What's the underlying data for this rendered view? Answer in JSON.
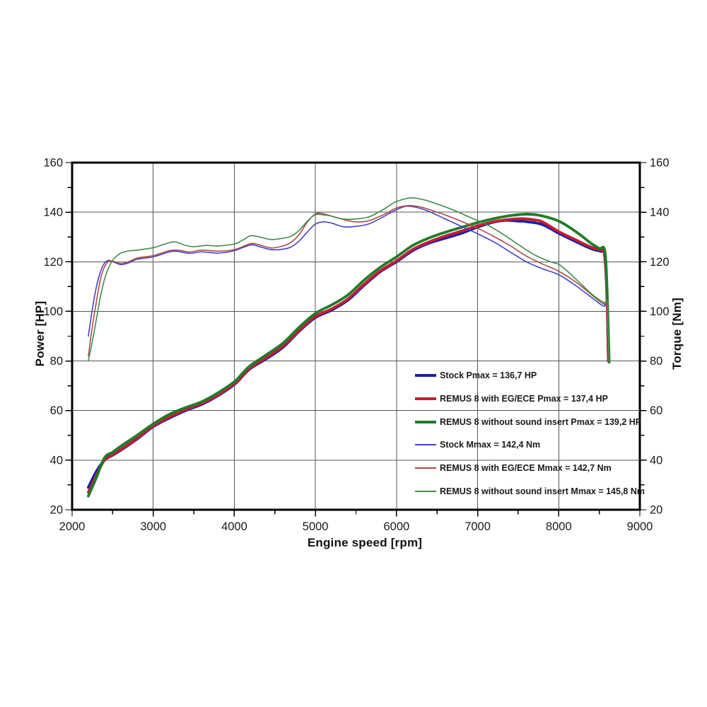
{
  "chart_data": {
    "type": "line",
    "title": "",
    "xlabel": "Engine speed [rpm]",
    "ylabel_left": "Power [HP]",
    "ylabel_right": "Torque [Nm]",
    "x_range": [
      2000,
      9000
    ],
    "y_range": [
      20,
      160
    ],
    "x_ticks": [
      2000,
      3000,
      4000,
      5000,
      6000,
      7000,
      8000,
      9000
    ],
    "y_ticks": [
      20,
      40,
      60,
      80,
      100,
      120,
      140,
      160
    ],
    "x_minor_step": 500,
    "y_minor_step": 10,
    "grid": true,
    "legend_position": "inside-lower-right",
    "colors": {
      "background": "#ffffff",
      "border": "#000000",
      "grid": "#555555",
      "text": "#1a1a1a"
    },
    "series": [
      {
        "id": "power-stock",
        "name": "Stock Pmax = 136,7 HP",
        "axis": "power",
        "color": "#1c1cae",
        "width": 3.8,
        "points": [
          [
            2200,
            29
          ],
          [
            2300,
            35.5
          ],
          [
            2400,
            40
          ],
          [
            2500,
            42
          ],
          [
            2600,
            44
          ],
          [
            2800,
            48.5
          ],
          [
            3000,
            53.5
          ],
          [
            3200,
            57
          ],
          [
            3400,
            60
          ],
          [
            3600,
            62.5
          ],
          [
            3800,
            66
          ],
          [
            4000,
            70.5
          ],
          [
            4100,
            73.8
          ],
          [
            4200,
            77
          ],
          [
            4400,
            81
          ],
          [
            4600,
            85.5
          ],
          [
            4800,
            92
          ],
          [
            5000,
            97.5
          ],
          [
            5200,
            100.5
          ],
          [
            5400,
            104.5
          ],
          [
            5600,
            110.5
          ],
          [
            5800,
            116
          ],
          [
            6000,
            120
          ],
          [
            6200,
            124.5
          ],
          [
            6400,
            127.5
          ],
          [
            6600,
            129.5
          ],
          [
            6800,
            131.5
          ],
          [
            7000,
            134
          ],
          [
            7200,
            136
          ],
          [
            7350,
            136.7
          ],
          [
            7500,
            136.4
          ],
          [
            7600,
            136.2
          ],
          [
            7800,
            135
          ],
          [
            8000,
            131.5
          ],
          [
            8200,
            128.3
          ],
          [
            8400,
            125.3
          ],
          [
            8520,
            124.2
          ],
          [
            8560,
            123.6
          ],
          [
            8590,
            110
          ],
          [
            8612,
            80
          ]
        ]
      },
      {
        "id": "power-remus-egece",
        "name": "REMUS 8 with EG/ECE Pmax = 137,4 HP",
        "axis": "power",
        "color": "#c41e2e",
        "width": 3.8,
        "points": [
          [
            2200,
            27
          ],
          [
            2300,
            34
          ],
          [
            2400,
            40
          ],
          [
            2500,
            42.2
          ],
          [
            2600,
            44.3
          ],
          [
            2800,
            48.8
          ],
          [
            3000,
            53.8
          ],
          [
            3200,
            57.4
          ],
          [
            3400,
            60.4
          ],
          [
            3600,
            62.9
          ],
          [
            3800,
            66.3
          ],
          [
            4000,
            70.8
          ],
          [
            4100,
            74
          ],
          [
            4200,
            77.3
          ],
          [
            4400,
            81.5
          ],
          [
            4600,
            86
          ],
          [
            4800,
            92.4
          ],
          [
            5000,
            98
          ],
          [
            5200,
            101
          ],
          [
            5400,
            105
          ],
          [
            5600,
            111
          ],
          [
            5800,
            116.4
          ],
          [
            6000,
            120.4
          ],
          [
            6200,
            125
          ],
          [
            6400,
            128
          ],
          [
            6600,
            130.4
          ],
          [
            6800,
            132.4
          ],
          [
            7000,
            134.5
          ],
          [
            7200,
            136.2
          ],
          [
            7400,
            137.1
          ],
          [
            7550,
            137.4
          ],
          [
            7700,
            136.9
          ],
          [
            7800,
            136.1
          ],
          [
            8000,
            132.2
          ],
          [
            8200,
            129
          ],
          [
            8400,
            125.9
          ],
          [
            8520,
            124.7
          ],
          [
            8560,
            124
          ],
          [
            8590,
            111
          ],
          [
            8612,
            80.5
          ]
        ]
      },
      {
        "id": "power-remus-no-insert",
        "name": "REMUS 8 without sound insert Pmax = 139,2 HP",
        "axis": "power",
        "color": "#1e7d28",
        "width": 3.8,
        "points": [
          [
            2200,
            25.5
          ],
          [
            2300,
            33
          ],
          [
            2400,
            41
          ],
          [
            2500,
            43.2
          ],
          [
            2600,
            45.6
          ],
          [
            2800,
            50
          ],
          [
            3000,
            54.6
          ],
          [
            3200,
            58.5
          ],
          [
            3400,
            61.2
          ],
          [
            3600,
            63.6
          ],
          [
            3800,
            67.2
          ],
          [
            4000,
            71.6
          ],
          [
            4100,
            75
          ],
          [
            4200,
            78.2
          ],
          [
            4400,
            82.6
          ],
          [
            4600,
            87.2
          ],
          [
            4800,
            93.6
          ],
          [
            5000,
            99.2
          ],
          [
            5200,
            102.6
          ],
          [
            5400,
            106.6
          ],
          [
            5600,
            112.6
          ],
          [
            5800,
            117.8
          ],
          [
            6000,
            122
          ],
          [
            6200,
            126.6
          ],
          [
            6400,
            129.6
          ],
          [
            6600,
            131.9
          ],
          [
            6800,
            133.9
          ],
          [
            7000,
            135.8
          ],
          [
            7200,
            137.4
          ],
          [
            7400,
            138.6
          ],
          [
            7600,
            139.2
          ],
          [
            7750,
            138.8
          ],
          [
            7900,
            137.6
          ],
          [
            8000,
            136.4
          ],
          [
            8100,
            134.6
          ],
          [
            8200,
            132.4
          ],
          [
            8300,
            130
          ],
          [
            8400,
            127.4
          ],
          [
            8500,
            125.4
          ],
          [
            8570,
            124.2
          ],
          [
            8600,
            105
          ],
          [
            8622,
            79.5
          ]
        ]
      },
      {
        "id": "torque-stock",
        "name": "Stock Mmax = 142,4 Nm",
        "axis": "torque",
        "color": "#4343c8",
        "width": 1.6,
        "points": [
          [
            2200,
            90
          ],
          [
            2250,
            101
          ],
          [
            2300,
            110
          ],
          [
            2350,
            116
          ],
          [
            2400,
            119.5
          ],
          [
            2450,
            120.6
          ],
          [
            2500,
            120.1
          ],
          [
            2600,
            118.9
          ],
          [
            2700,
            119.6
          ],
          [
            2800,
            121
          ],
          [
            3000,
            122
          ],
          [
            3200,
            124
          ],
          [
            3300,
            124.2
          ],
          [
            3450,
            123.4
          ],
          [
            3600,
            124
          ],
          [
            3800,
            123.5
          ],
          [
            4000,
            124.5
          ],
          [
            4200,
            126.8
          ],
          [
            4300,
            126.2
          ],
          [
            4450,
            124.9
          ],
          [
            4600,
            125.1
          ],
          [
            4700,
            126
          ],
          [
            4800,
            128.4
          ],
          [
            4900,
            132
          ],
          [
            5000,
            135.2
          ],
          [
            5100,
            136.1
          ],
          [
            5200,
            135.6
          ],
          [
            5350,
            134.1
          ],
          [
            5500,
            134.3
          ],
          [
            5650,
            135.2
          ],
          [
            5800,
            137.5
          ],
          [
            5900,
            139.3
          ],
          [
            6000,
            141
          ],
          [
            6120,
            142.4
          ],
          [
            6250,
            141.9
          ],
          [
            6400,
            140.3
          ],
          [
            6600,
            137.3
          ],
          [
            6800,
            134.3
          ],
          [
            7000,
            131.3
          ],
          [
            7200,
            128
          ],
          [
            7400,
            124
          ],
          [
            7600,
            120
          ],
          [
            7800,
            117.2
          ],
          [
            8000,
            114.8
          ],
          [
            8200,
            110.6
          ],
          [
            8350,
            107
          ],
          [
            8500,
            103.2
          ],
          [
            8560,
            102
          ],
          [
            8590,
            101.5
          ],
          [
            8612,
            80
          ]
        ]
      },
      {
        "id": "torque-remus-egece",
        "name": "REMUS 8 with EG/ECE Mmax = 142,7 Nm",
        "axis": "torque",
        "color": "#b04a4a",
        "width": 1.6,
        "points": [
          [
            2200,
            82
          ],
          [
            2250,
            94
          ],
          [
            2300,
            104
          ],
          [
            2350,
            113
          ],
          [
            2400,
            118
          ],
          [
            2450,
            120.2
          ],
          [
            2500,
            120.3
          ],
          [
            2600,
            119.3
          ],
          [
            2700,
            120.1
          ],
          [
            2800,
            121.5
          ],
          [
            3000,
            122.5
          ],
          [
            3200,
            124.5
          ],
          [
            3300,
            124.7
          ],
          [
            3450,
            124
          ],
          [
            3600,
            124.7
          ],
          [
            3800,
            124.3
          ],
          [
            4000,
            124.9
          ],
          [
            4200,
            127.3
          ],
          [
            4300,
            126.9
          ],
          [
            4450,
            125.6
          ],
          [
            4600,
            126.4
          ],
          [
            4700,
            127.9
          ],
          [
            4800,
            131
          ],
          [
            4900,
            136
          ],
          [
            5000,
            139.3
          ],
          [
            5080,
            139.5
          ],
          [
            5200,
            138.4
          ],
          [
            5350,
            137
          ],
          [
            5500,
            136.1
          ],
          [
            5650,
            136.5
          ],
          [
            5800,
            138.4
          ],
          [
            5900,
            140
          ],
          [
            6000,
            141.7
          ],
          [
            6150,
            142.7
          ],
          [
            6300,
            142.1
          ],
          [
            6400,
            141.1
          ],
          [
            6600,
            138.9
          ],
          [
            6800,
            136.3
          ],
          [
            7000,
            133.5
          ],
          [
            7200,
            130.2
          ],
          [
            7400,
            126.5
          ],
          [
            7600,
            122.3
          ],
          [
            7800,
            119.1
          ],
          [
            8000,
            116.2
          ],
          [
            8200,
            112.1
          ],
          [
            8350,
            108.2
          ],
          [
            8500,
            104.1
          ],
          [
            8560,
            102.9
          ],
          [
            8590,
            102.3
          ],
          [
            8612,
            80.5
          ]
        ]
      },
      {
        "id": "torque-remus-no-insert",
        "name": "REMUS 8 without sound insert Mmax = 145,8 Nm",
        "axis": "torque",
        "color": "#3e8e4a",
        "width": 1.6,
        "points": [
          [
            2200,
            80
          ],
          [
            2250,
            88
          ],
          [
            2300,
            97
          ],
          [
            2350,
            106
          ],
          [
            2400,
            113
          ],
          [
            2450,
            117.6
          ],
          [
            2500,
            120.6
          ],
          [
            2550,
            122.3
          ],
          [
            2600,
            123.5
          ],
          [
            2700,
            124.4
          ],
          [
            2800,
            124.7
          ],
          [
            3000,
            125.7
          ],
          [
            3100,
            126.7
          ],
          [
            3200,
            127.7
          ],
          [
            3280,
            128
          ],
          [
            3400,
            126.6
          ],
          [
            3500,
            126.1
          ],
          [
            3650,
            126.6
          ],
          [
            3800,
            126.4
          ],
          [
            4000,
            127.2
          ],
          [
            4100,
            128.7
          ],
          [
            4200,
            130.5
          ],
          [
            4300,
            130.1
          ],
          [
            4450,
            129
          ],
          [
            4600,
            129.5
          ],
          [
            4700,
            130.3
          ],
          [
            4800,
            132.7
          ],
          [
            4900,
            136.4
          ],
          [
            5000,
            139
          ],
          [
            5100,
            138.9
          ],
          [
            5200,
            138.4
          ],
          [
            5350,
            137.2
          ],
          [
            5500,
            137.3
          ],
          [
            5650,
            138
          ],
          [
            5800,
            140.4
          ],
          [
            5900,
            142.4
          ],
          [
            6000,
            144.3
          ],
          [
            6180,
            145.8
          ],
          [
            6350,
            144.9
          ],
          [
            6500,
            143.3
          ],
          [
            6700,
            140.9
          ],
          [
            6900,
            138
          ],
          [
            7100,
            135.2
          ],
          [
            7300,
            131.4
          ],
          [
            7500,
            127
          ],
          [
            7700,
            122.8
          ],
          [
            7900,
            120
          ],
          [
            8000,
            119
          ],
          [
            8100,
            116.4
          ],
          [
            8250,
            111.8
          ],
          [
            8400,
            107.2
          ],
          [
            8500,
            104.7
          ],
          [
            8570,
            103.3
          ],
          [
            8600,
            102.8
          ],
          [
            8622,
            79.5
          ]
        ]
      }
    ]
  }
}
